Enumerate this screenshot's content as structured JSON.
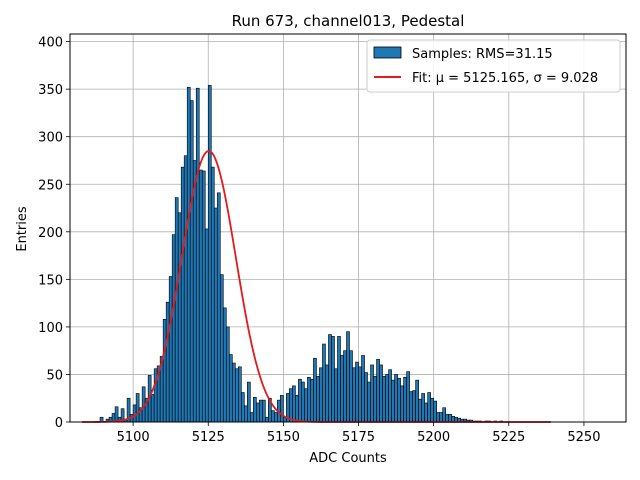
{
  "chart_data": {
    "type": "bar",
    "title": "Run 673, channel013, Pedestal",
    "xlabel": "ADC Counts",
    "ylabel": "Entries",
    "xlim": [
      5079,
      5264
    ],
    "ylim": [
      0,
      408
    ],
    "x_ticks": [
      5100,
      5125,
      5150,
      5175,
      5200,
      5225,
      5250
    ],
    "y_ticks": [
      0,
      50,
      100,
      150,
      200,
      250,
      300,
      350,
      400
    ],
    "grid": true,
    "legend_position": "upper right",
    "colors": {
      "bars": "#1f77b4",
      "bar_edge": "#000000",
      "fit": "#e41a1c",
      "grid": "#b0b0b0"
    },
    "histogram": {
      "name": "Samples: RMS=31.15",
      "bin_start": 5087,
      "bin_width": 1,
      "counts": [
        0,
        0,
        5,
        0,
        3,
        5,
        9,
        16,
        5,
        14,
        3,
        25,
        8,
        18,
        30,
        15,
        37,
        25,
        49,
        29,
        56,
        59,
        69,
        108,
        126,
        153,
        197,
        236,
        220,
        268,
        280,
        352,
        338,
        275,
        351,
        265,
        264,
        203,
        354,
        268,
        225,
        241,
        155,
        120,
        100,
        71,
        62,
        56,
        58,
        31,
        17,
        42,
        10,
        26,
        20,
        23,
        23,
        5,
        25,
        12,
        10,
        23,
        28,
        5,
        30,
        35,
        38,
        28,
        45,
        42,
        35,
        47,
        45,
        67,
        48,
        57,
        82,
        60,
        92,
        90,
        56,
        90,
        70,
        75,
        95,
        75,
        57,
        63,
        58,
        70,
        52,
        42,
        60,
        48,
        66,
        60,
        48,
        50,
        55,
        44,
        50,
        46,
        38,
        47,
        53,
        32,
        33,
        44,
        24,
        30,
        20,
        31,
        25,
        22,
        10,
        10,
        15,
        8,
        8,
        6,
        5,
        4,
        3,
        3,
        2,
        2,
        1,
        1,
        1,
        0,
        1,
        1,
        0,
        1,
        0,
        1,
        0,
        0,
        0,
        0
      ]
    },
    "fit": {
      "label": "Fit: μ = 5125.165, σ = 9.028",
      "mu": 5125.165,
      "sigma": 9.028,
      "amplitude": 285,
      "x_range": [
        5083,
        5239
      ]
    }
  }
}
